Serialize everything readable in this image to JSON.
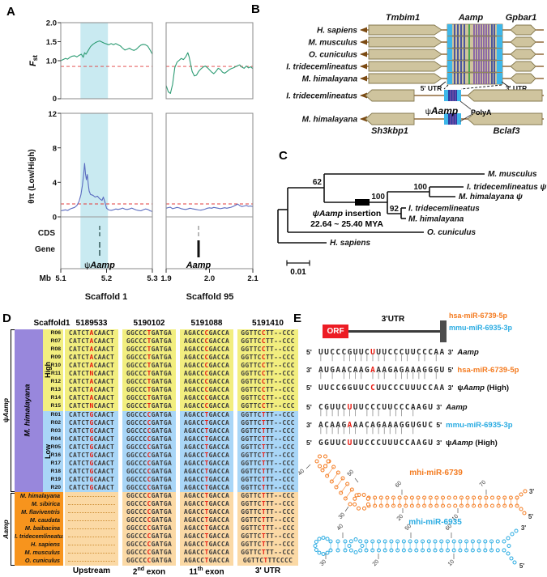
{
  "panelA": {
    "label": "A",
    "fst_f": "F",
    "fst_sub": "st",
    "theta_label": "θπ (Low/High)",
    "cds": "CDS",
    "gene": "Gene",
    "mb": "Mb",
    "fst_ticks": [
      "2.0",
      "1.5",
      "1.0",
      "0"
    ],
    "theta_ticks": [
      "12",
      "8",
      "4",
      "0"
    ],
    "x_ticks_left": [
      "5.1",
      "5.2",
      "5.3"
    ],
    "x_ticks_right": [
      "1.9",
      "2.0",
      "2.1"
    ],
    "scaffold_left": "Scaffold 1",
    "scaffold_right": "Scaffold 95",
    "gene_psi_prefix": "ψ",
    "gene_psi_name": "Aamp",
    "gene_aamp": "Aamp",
    "colors": {
      "fst": "#2E9C74",
      "theta": "#5B6CC0",
      "threshold": "#E23B3B",
      "band": "#C9EAF1",
      "frame": "#8a8a8a"
    }
  },
  "chart_data": [
    {
      "type": "line",
      "title": "Fst Scaffold 1",
      "xlabel": "Mb",
      "ylabel": "Fst",
      "xlim": [
        5.1,
        5.3
      ],
      "ylim": [
        0,
        2
      ],
      "threshold": 0.85,
      "highlight_band": [
        5.143,
        5.203
      ],
      "points": [
        [
          5.1,
          1.0
        ],
        [
          5.105,
          1.03
        ],
        [
          5.11,
          1.06
        ],
        [
          5.115,
          1.04
        ],
        [
          5.12,
          1.09
        ],
        [
          5.125,
          1.12
        ],
        [
          5.13,
          1.13
        ],
        [
          5.135,
          1.1
        ],
        [
          5.14,
          1.14
        ],
        [
          5.145,
          1.17
        ],
        [
          5.149,
          1.09
        ],
        [
          5.152,
          1.21
        ],
        [
          5.155,
          1.17
        ],
        [
          5.16,
          1.27
        ],
        [
          5.165,
          1.37
        ],
        [
          5.17,
          1.43
        ],
        [
          5.175,
          1.47
        ],
        [
          5.18,
          1.5
        ],
        [
          5.185,
          1.52
        ],
        [
          5.19,
          1.49
        ],
        [
          5.195,
          1.46
        ],
        [
          5.2,
          1.44
        ],
        [
          5.205,
          1.42
        ],
        [
          5.21,
          1.45
        ],
        [
          5.215,
          1.42
        ],
        [
          5.22,
          1.45
        ],
        [
          5.225,
          1.42
        ],
        [
          5.23,
          1.39
        ],
        [
          5.235,
          1.33
        ],
        [
          5.24,
          1.28
        ],
        [
          5.245,
          1.3
        ],
        [
          5.25,
          1.33
        ],
        [
          5.255,
          1.29
        ],
        [
          5.26,
          1.27
        ],
        [
          5.265,
          1.3
        ],
        [
          5.27,
          1.36
        ],
        [
          5.275,
          1.41
        ],
        [
          5.28,
          1.43
        ],
        [
          5.285,
          1.42
        ],
        [
          5.29,
          1.38
        ],
        [
          5.295,
          1.28
        ],
        [
          5.3,
          1.17
        ]
      ]
    },
    {
      "type": "line",
      "title": "Fst Scaffold 95",
      "xlim": [
        1.9,
        2.1
      ],
      "ylim": [
        0,
        2
      ],
      "threshold": 0.85,
      "points": [
        [
          1.9,
          0.35
        ],
        [
          1.905,
          0.18
        ],
        [
          1.91,
          0.14
        ],
        [
          1.915,
          0.38
        ],
        [
          1.92,
          0.82
        ],
        [
          1.925,
          0.96
        ],
        [
          1.93,
          1.01
        ],
        [
          1.935,
          1.06
        ],
        [
          1.94,
          1.03
        ],
        [
          1.945,
          1.1
        ],
        [
          1.95,
          1.21
        ],
        [
          1.953,
          1.1
        ],
        [
          1.957,
          0.88
        ],
        [
          1.96,
          0.72
        ],
        [
          1.965,
          0.6
        ],
        [
          1.97,
          0.62
        ],
        [
          1.975,
          0.72
        ],
        [
          1.98,
          0.78
        ],
        [
          1.985,
          0.83
        ],
        [
          1.99,
          0.86
        ],
        [
          1.995,
          0.82
        ],
        [
          2.0,
          0.76
        ],
        [
          2.005,
          0.7
        ],
        [
          2.01,
          0.66
        ],
        [
          2.015,
          0.72
        ],
        [
          2.02,
          0.8
        ],
        [
          2.025,
          0.77
        ],
        [
          2.03,
          0.7
        ],
        [
          2.035,
          0.67
        ],
        [
          2.04,
          0.71
        ],
        [
          2.045,
          0.76
        ],
        [
          2.05,
          0.79
        ],
        [
          2.055,
          0.81
        ],
        [
          2.06,
          0.84
        ],
        [
          2.065,
          0.87
        ],
        [
          2.07,
          0.89
        ],
        [
          2.075,
          0.83
        ],
        [
          2.08,
          0.8
        ],
        [
          2.085,
          0.86
        ],
        [
          2.09,
          0.81
        ],
        [
          2.095,
          0.84
        ],
        [
          2.1,
          0.79
        ]
      ]
    },
    {
      "type": "line",
      "title": "θπ (Low/High) Scaffold 1",
      "xlim": [
        5.1,
        5.3
      ],
      "ylim": [
        0,
        12
      ],
      "threshold": 1.5,
      "highlight_band": [
        5.143,
        5.203
      ],
      "points": [
        [
          5.1,
          0.7
        ],
        [
          5.105,
          0.76
        ],
        [
          5.11,
          0.82
        ],
        [
          5.115,
          0.74
        ],
        [
          5.12,
          0.9
        ],
        [
          5.125,
          1.0
        ],
        [
          5.13,
          1.1
        ],
        [
          5.135,
          1.3
        ],
        [
          5.14,
          1.8
        ],
        [
          5.144,
          2.6
        ],
        [
          5.147,
          3.6
        ],
        [
          5.15,
          5.0
        ],
        [
          5.152,
          6.2
        ],
        [
          5.154,
          5.0
        ],
        [
          5.156,
          4.3
        ],
        [
          5.158,
          4.9
        ],
        [
          5.16,
          3.8
        ],
        [
          5.162,
          3.0
        ],
        [
          5.165,
          2.6
        ],
        [
          5.17,
          2.5
        ],
        [
          5.175,
          2.3
        ],
        [
          5.18,
          2.4
        ],
        [
          5.185,
          2.1
        ],
        [
          5.19,
          1.9
        ],
        [
          5.193,
          2.3
        ],
        [
          5.196,
          1.8
        ],
        [
          5.2,
          1.0
        ],
        [
          5.205,
          0.8
        ],
        [
          5.21,
          0.76
        ],
        [
          5.215,
          0.82
        ],
        [
          5.22,
          0.92
        ],
        [
          5.225,
          0.86
        ],
        [
          5.23,
          0.92
        ],
        [
          5.235,
          1.02
        ],
        [
          5.24,
          0.9
        ],
        [
          5.245,
          0.86
        ],
        [
          5.25,
          0.92
        ],
        [
          5.255,
          1.02
        ],
        [
          5.26,
          0.9
        ],
        [
          5.265,
          0.8
        ],
        [
          5.27,
          0.74
        ],
        [
          5.275,
          0.7
        ],
        [
          5.28,
          0.82
        ],
        [
          5.285,
          0.92
        ],
        [
          5.29,
          0.86
        ],
        [
          5.295,
          0.7
        ],
        [
          5.3,
          0.62
        ]
      ]
    },
    {
      "type": "line",
      "title": "θπ (Low/High) Scaffold 95",
      "xlim": [
        1.9,
        2.1
      ],
      "ylim": [
        0,
        12
      ],
      "threshold": 1.5,
      "points": [
        [
          1.9,
          1.0
        ],
        [
          1.905,
          1.08
        ],
        [
          1.91,
          1.12
        ],
        [
          1.915,
          0.95
        ],
        [
          1.92,
          1.02
        ],
        [
          1.925,
          1.1
        ],
        [
          1.93,
          1.04
        ],
        [
          1.935,
          0.95
        ],
        [
          1.94,
          0.9
        ],
        [
          1.945,
          0.86
        ],
        [
          1.95,
          0.92
        ],
        [
          1.955,
          1.0
        ],
        [
          1.96,
          0.95
        ],
        [
          1.965,
          0.9
        ],
        [
          1.97,
          0.85
        ],
        [
          1.975,
          0.8
        ],
        [
          1.98,
          0.78
        ],
        [
          1.985,
          0.83
        ],
        [
          1.99,
          0.9
        ],
        [
          1.995,
          1.0
        ],
        [
          2.0,
          1.05
        ],
        [
          2.005,
          1.0
        ],
        [
          2.01,
          1.1
        ],
        [
          2.015,
          1.05
        ],
        [
          2.02,
          1.0
        ],
        [
          2.025,
          0.95
        ],
        [
          2.03,
          1.0
        ],
        [
          2.035,
          1.06
        ],
        [
          2.04,
          1.0
        ],
        [
          2.045,
          1.06
        ],
        [
          2.05,
          1.12
        ],
        [
          2.055,
          1.22
        ],
        [
          2.06,
          1.35
        ],
        [
          2.065,
          1.48
        ],
        [
          2.07,
          1.3
        ],
        [
          2.075,
          1.2
        ],
        [
          2.08,
          1.26
        ],
        [
          2.085,
          1.32
        ],
        [
          2.09,
          1.22
        ],
        [
          2.095,
          1.26
        ],
        [
          2.1,
          1.2
        ]
      ]
    }
  ],
  "panelB": {
    "label": "B",
    "genes_top": [
      "Tmbim1",
      "Aamp",
      "Gpbar1"
    ],
    "species_top": [
      "H. sapiens",
      "M. musculus",
      "O. cuniculus",
      "I. tridecemlineatus",
      "M. himalayana"
    ],
    "species_bottom": [
      "I. tridecemlineatus",
      "M. himalayana"
    ],
    "utr5": "5' UTR",
    "utr3": "3' UTR",
    "psi": "ψ",
    "psi_name": "Aamp",
    "polya": "PolyA",
    "gene_bottom_left": "Sh3kbp1",
    "gene_bottom_right": "Bclaf3"
  },
  "panelC": {
    "label": "C",
    "tips": [
      "M. musculus",
      "I. tridecemlineatus ψ",
      "M. himalayana ψ",
      "I. tridecemlineatus",
      "M. himalayana",
      "O. cuniculus",
      "H. sapiens"
    ],
    "boot_62": "62",
    "boot_100a": "100",
    "boot_100b": "100",
    "boot_92": "92",
    "insertion_psi": "ψAamp",
    "insertion_rest": " insertion",
    "insertion_line2": "22.64 ~ 25.40 MYA",
    "scale": "0.01"
  },
  "panelD": {
    "label": "D",
    "header": [
      "Scaffold1",
      "5189533",
      "5190102",
      "5191088",
      "5191410"
    ],
    "footer_parts": [
      {
        "pre": "Upstream",
        "sup": "",
        "post": ""
      },
      {
        "pre": "2",
        "sup": "nd",
        "post": " exon"
      },
      {
        "pre": "11",
        "sup": "th",
        "post": " exon"
      },
      {
        "pre": "3' UTR",
        "sup": "",
        "post": ""
      }
    ],
    "side": {
      "psi": "ψ",
      "psi_name": "Aamp",
      "aamp": "Aamp",
      "species": "M. himalayana",
      "high": "High",
      "low": "Low"
    },
    "red_index": 5,
    "colors": {
      "high": "#F2EE7F",
      "low": "#A9D6F7",
      "purple": "#9887DC",
      "orange": "#F7941D",
      "orange_light": "#FBD9A5"
    },
    "groups": [
      {
        "id": "high",
        "seqs": [
          "GGCCCTGATGA",
          "AGACCCGACCA",
          "GGTTCCTT--CCC"
        ],
        "rows": [
          {
            "label": "R06",
            "u": "CATCTACAACT"
          },
          {
            "label": "R07",
            "u": "CATCTACAACT"
          },
          {
            "label": "R08",
            "u": "CATCTACAACT"
          },
          {
            "label": "R09",
            "u": "CATCTACAACT"
          },
          {
            "label": "R10",
            "u": "CATCTACAACT"
          },
          {
            "label": "R11",
            "u": "CATCTNCAACT"
          },
          {
            "label": "R12",
            "u": "CATCTACAACT"
          },
          {
            "label": "R13",
            "u": "CATCTACAACT"
          },
          {
            "label": "R14",
            "u": "CATCTACAACT"
          },
          {
            "label": "R15",
            "u": "CATCTNCAACT"
          }
        ]
      },
      {
        "id": "low",
        "seqs": [
          "GGCCCCGATGA",
          "AGACCTGACCA",
          "GGTTCTTT--CCC"
        ],
        "rows": [
          {
            "label": "R01",
            "u": "CATCTGCAACT"
          },
          {
            "label": "R02",
            "u": "CATCTGCAACT"
          },
          {
            "label": "R03",
            "u": "CATCTGCAACT"
          },
          {
            "label": "R04",
            "u": "CATCTGCAACT"
          },
          {
            "label": "R05",
            "u": "CATCTGCAACT"
          },
          {
            "label": "R16",
            "u": "CATCTGCAACT"
          },
          {
            "label": "R17",
            "u": "CATCTGCAACT"
          },
          {
            "label": "R18",
            "u": "CATCTGCAACT"
          },
          {
            "label": "R19",
            "u": "CATCTGCAACT"
          },
          {
            "label": "R20",
            "u": "CATCTGCAACT"
          }
        ]
      },
      {
        "id": "aamp",
        "seqs": [
          "GGCCCCGATGA",
          "AGACCTGACCA",
          "GGTTCTTT--CCC"
        ],
        "rows": [
          {
            "label": "M. himalayana"
          },
          {
            "label": "M. sibirica"
          },
          {
            "label": "M. flaviventris"
          },
          {
            "label": "M. caudata"
          },
          {
            "label": "M. baibacina"
          },
          {
            "label": "I. tridecemlineatus"
          },
          {
            "label": "H. sapiens"
          },
          {
            "label": "M. musculus"
          },
          {
            "label": "O. cuniculus",
            "utr3": "GGTTCTTTCCCC"
          }
        ]
      }
    ]
  },
  "panelE": {
    "label": "E",
    "orf": "ORF",
    "utr3": "3'UTR",
    "mir_top": [
      {
        "text": "hsa-miR-6739-5p",
        "color": "#F47B20"
      },
      {
        "text": "mmu-miR-6935-3p",
        "color": "#29ABE2"
      }
    ],
    "blocks": [
      {
        "rows": [
          {
            "p5": "5'",
            "seq": "UUCCCGUUCUUUCCCUUCCCAA",
            "red": 9,
            "p3": "3'",
            "label": [
              {
                "t": "Aamp",
                "i": 1
              }
            ]
          },
          {
            "p5": "3'",
            "seq": "AUGAACAAGAAAGAGAAAGGGU",
            "red": 9,
            "p3": "5'",
            "label": [
              {
                "t": "hsa-miR-6739-5p",
                "c": "#F47B20"
              }
            ]
          },
          {
            "p5": "5'",
            "seq": "UUCCGGUUCCUUCCCUUUCCAA",
            "red": 9,
            "p3": "3'",
            "label": [
              {
                "t": "ψ"
              },
              {
                "t": "Aamp",
                "i": 1
              },
              {
                "t": " (High)"
              }
            ]
          }
        ],
        "bars": [
          "| |  |||||||| ||| || |",
          "| |  |||| ||| |||||| |"
        ]
      },
      {
        "rows": [
          {
            "p5": "5'",
            "seq": "CGUUCUUUCCCUUCCCAAGU",
            "red": 5,
            "p3": "3'",
            "label": [
              {
                "t": "Aamp",
                "i": 1
              }
            ]
          },
          {
            "p5": "3'",
            "seq": "ACAAGAAACAGAAAGGUGUC",
            "red": 5,
            "p3": "5'",
            "label": [
              {
                "t": "mmu-miR-6935-3p",
                "c": "#29ABE2"
              }
            ]
          },
          {
            "p5": "5'",
            "seq": "GGUUCUUUCCCUUUCCAAGU",
            "red": 5,
            "p3": "3'",
            "label": [
              {
                "t": "ψ"
              },
              {
                "t": "Aamp",
                "i": 1
              },
              {
                "t": " (High)"
              }
            ]
          }
        ],
        "bars": [
          " |||||||  ||| ||| | ",
          " |||||||  ||||||| | "
        ]
      }
    ],
    "structures": [
      {
        "name": "mhi-miR-6739",
        "color": "#F47B20",
        "ticks": [
          "10",
          "20",
          "30",
          "40",
          "50",
          "60",
          "70"
        ],
        "ends": [
          "5'",
          "3'"
        ]
      },
      {
        "name": "mhi-miR-6935",
        "color": "#29ABE2",
        "ticks": [
          "10",
          "20",
          "30",
          "40",
          "50",
          "60"
        ],
        "ends": [
          "5'",
          "3'"
        ]
      }
    ]
  }
}
